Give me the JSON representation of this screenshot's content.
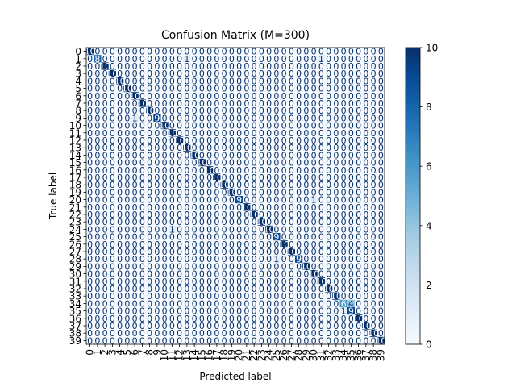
{
  "chart_data": {
    "type": "heatmap",
    "title": "Confusion Matrix (M=300)",
    "xlabel": "Predicted label",
    "ylabel": "True label",
    "labels": [
      "0",
      "1",
      "2",
      "3",
      "4",
      "5",
      "6",
      "7",
      "8",
      "9",
      "10",
      "11",
      "12",
      "13",
      "14",
      "15",
      "16",
      "17",
      "18",
      "19",
      "20",
      "21",
      "22",
      "23",
      "24",
      "25",
      "26",
      "27",
      "28",
      "29",
      "30",
      "31",
      "32",
      "33",
      "34",
      "35",
      "36",
      "37",
      "38",
      "39"
    ],
    "diagonal": [
      10,
      8,
      10,
      10,
      10,
      10,
      10,
      10,
      10,
      9,
      10,
      10,
      10,
      10,
      10,
      10,
      10,
      10,
      10,
      10,
      9,
      10,
      10,
      10,
      10,
      9,
      10,
      10,
      9,
      10,
      10,
      10,
      10,
      10,
      6,
      9,
      10,
      10,
      10,
      10
    ],
    "off_diagonal": [
      {
        "row": 0,
        "col": 1,
        "value": 0
      },
      {
        "row": 1,
        "col": 13,
        "value": 1
      },
      {
        "row": 1,
        "col": 31,
        "value": 1
      },
      {
        "row": 9,
        "col": 6,
        "value": 1
      },
      {
        "row": 20,
        "col": 30,
        "value": 1
      },
      {
        "row": 24,
        "col": 11,
        "value": 1
      },
      {
        "row": 28,
        "col": 25,
        "value": 1
      },
      {
        "row": 34,
        "col": 35,
        "value": 4
      },
      {
        "row": 35,
        "col": 34,
        "value": 1
      }
    ],
    "colorbar": {
      "min": 0,
      "max": 10,
      "ticks": [
        0,
        2,
        4,
        6,
        8,
        10
      ],
      "cmap": "Blues"
    },
    "colors": {
      "low": "#f7fbff",
      "high": "#08306b"
    }
  }
}
